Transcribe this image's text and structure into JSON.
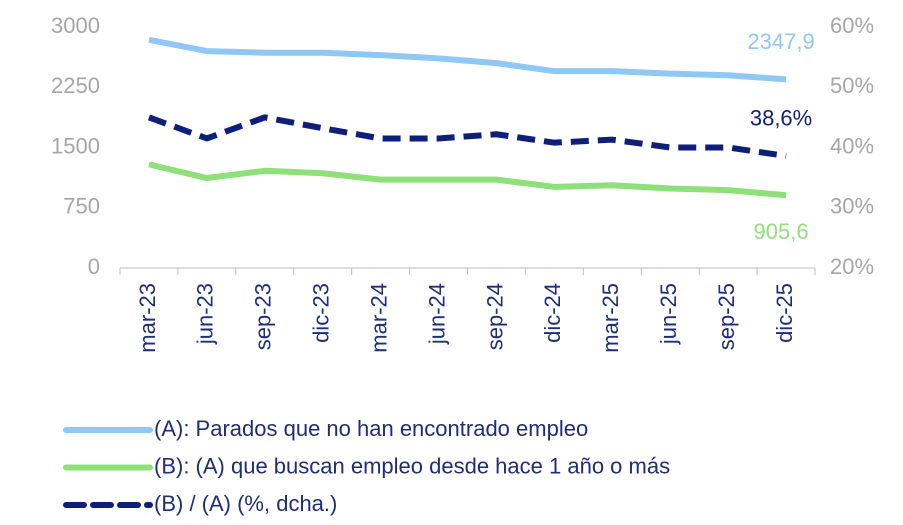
{
  "chart_data": {
    "type": "line",
    "categories": [
      "mar-23",
      "jun-23",
      "sep-23",
      "dic-23",
      "mar-24",
      "jun-24",
      "sep-24",
      "dic-24",
      "mar-25",
      "jun-25",
      "sep-25",
      "dic-25"
    ],
    "series": [
      {
        "name": "(A): Parados que no han encontrado empleo",
        "color": "#8fc8f5",
        "dashed": false,
        "values": [
          2840,
          2700,
          2680,
          2680,
          2650,
          2610,
          2550,
          2450,
          2450,
          2420,
          2400,
          2347.9
        ],
        "value_labels": [
          null,
          null,
          null,
          null,
          null,
          null,
          null,
          null,
          null,
          null,
          null,
          "2347,9"
        ]
      },
      {
        "name": "(B): (A) que buscan empleo desde hace 1 año o más",
        "color": "#8ee07a",
        "dashed": false,
        "values": [
          1290,
          1120,
          1210,
          1180,
          1100,
          1100,
          1100,
          1010,
          1030,
          990,
          970,
          905.6
        ],
        "value_labels": [
          null,
          null,
          null,
          null,
          null,
          null,
          null,
          null,
          null,
          null,
          null,
          "905,6"
        ]
      },
      {
        "name": "(B) / (A) (%, dcha.)",
        "color": "#0d1f7a",
        "dashed": true,
        "axis": "y2",
        "values": [
          45,
          41.5,
          45,
          43.2,
          41.5,
          41.5,
          42.2,
          40.8,
          41.3,
          40,
          40,
          38.6
        ],
        "value_labels": [
          null,
          null,
          null,
          null,
          null,
          null,
          null,
          null,
          null,
          null,
          null,
          "38,6%"
        ]
      }
    ],
    "ylim": [
      0,
      3000
    ],
    "yticks": [
      0,
      750,
      1500,
      2250,
      3000
    ],
    "y2lim": [
      20,
      60
    ],
    "y2ticks": [
      {
        "value": 20,
        "label": "20%"
      },
      {
        "value": 30,
        "label": "30%"
      },
      {
        "value": 40,
        "label": "40%"
      },
      {
        "value": 50,
        "label": "50%"
      },
      {
        "value": 60,
        "label": "60%"
      }
    ],
    "grid": false,
    "legend": "bottom"
  }
}
